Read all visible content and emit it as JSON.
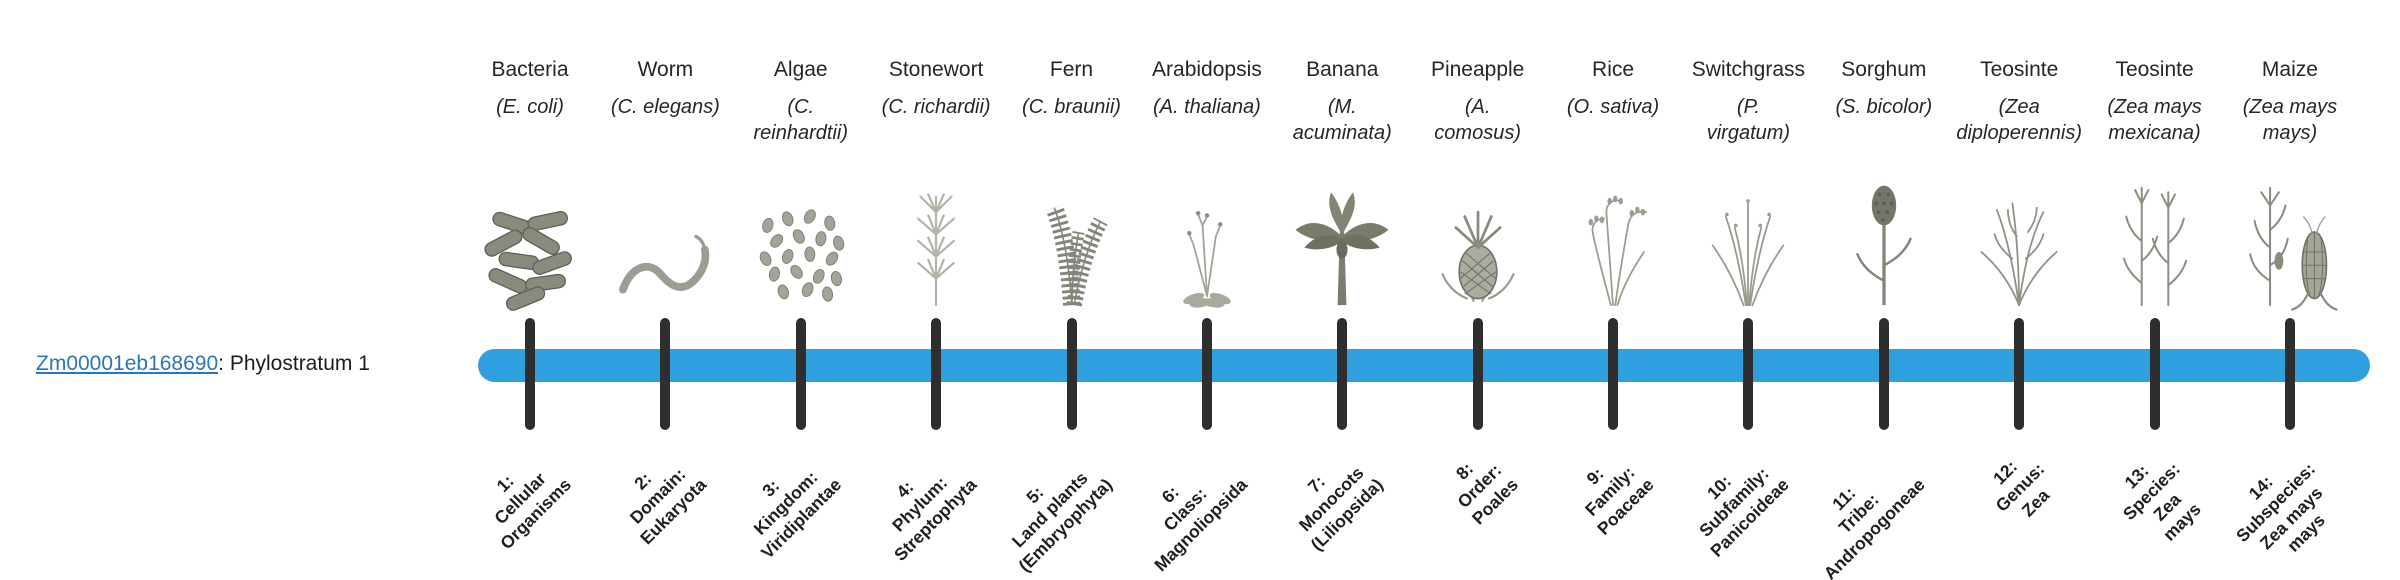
{
  "gene": {
    "id": "Zm00001eb168690",
    "suffix": ": Phylostratum 1"
  },
  "timeline": {
    "bar_color": "#2F9FE0",
    "tick_color": "#2e2e2e",
    "link_color": "#2b76b9"
  },
  "strata": [
    {
      "name": "Bacteria",
      "sci": "(E. coli)",
      "icon": "bacteria-illustration",
      "label": "1:\nCellular\nOrganisms"
    },
    {
      "name": "Worm",
      "sci": "(C. elegans)",
      "icon": "worm-illustration",
      "label": "2:\nDomain:\nEukaryota"
    },
    {
      "name": "Algae",
      "sci": "(C.\nreinhardtii)",
      "icon": "algae-illustration",
      "label": "3:\nKingdom:\nViridiplantae"
    },
    {
      "name": "Stonewort",
      "sci": "(C. richardii)",
      "icon": "stonewort-illustration",
      "label": "4:\nPhylum:\nStreptophyta"
    },
    {
      "name": "Fern",
      "sci": "(C. braunii)",
      "icon": "fern-illustration",
      "label": "5:\nLand plants\n(Embryophyta)"
    },
    {
      "name": "Arabidopsis",
      "sci": "(A. thaliana)",
      "icon": "arabidopsis-illustration",
      "label": "6:\nClass:\nMagnoliopsida"
    },
    {
      "name": "Banana",
      "sci": "(M.\nacuminata)",
      "icon": "banana-illustration",
      "label": "7:\nMonocots\n(Liliopsida)"
    },
    {
      "name": "Pineapple",
      "sci": "(A.\ncomosus)",
      "icon": "pineapple-illustration",
      "label": "8:\nOrder:\nPoales"
    },
    {
      "name": "Rice",
      "sci": "(O. sativa)",
      "icon": "rice-illustration",
      "label": "9:\nFamily:\nPoaceae"
    },
    {
      "name": "Switchgrass",
      "sci": "(P.\nvirgatum)",
      "icon": "switchgrass-illustration",
      "label": "10:\nSubfamily:\nPanicoideae"
    },
    {
      "name": "Sorghum",
      "sci": "(S. bicolor)",
      "icon": "sorghum-illustration",
      "label": "11:\nTribe:\nAndropogoneae"
    },
    {
      "name": "Teosinte",
      "sci": "(Zea\ndiploperennis)",
      "icon": "teosinte-diploperennis-illustration",
      "label": "12:\nGenus:\nZea"
    },
    {
      "name": "Teosinte",
      "sci": "(Zea mays\nmexicana)",
      "icon": "teosinte-mexicana-illustration",
      "label": "13:\nSpecies:\nZea\nmays"
    },
    {
      "name": "Maize",
      "sci": "(Zea mays\nmays)",
      "icon": "maize-illustration",
      "label": "14:\nSubspecies:\nZea mays\nmays"
    }
  ]
}
